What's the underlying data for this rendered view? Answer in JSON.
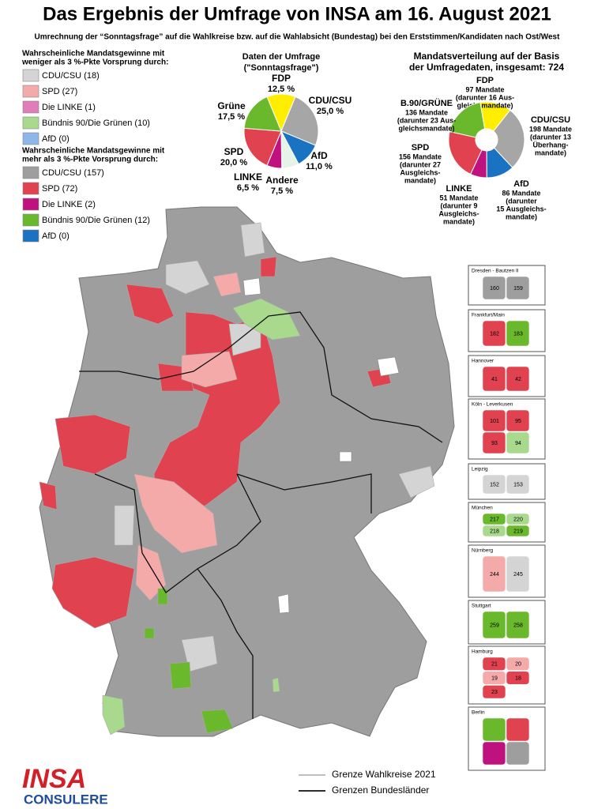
{
  "title": "Das Ergebnis der Umfrage von INSA am 16. August 2021",
  "subtitle": "Umrechnung der “Sonntagsfrage” auf die Wahlkreise bzw. auf die Wahlabsicht (Bundestag) bei den Erststimmen/Kandidaten nach Ost/West",
  "legend_less": {
    "heading": [
      "Wahrscheinliche Mandatsgewinne mit",
      "weniger als 3 %-Pkte Vorsprung durch:"
    ],
    "items": [
      {
        "label": "CDU/CSU (18)",
        "color": "#d4d4d4"
      },
      {
        "label": "SPD (27)",
        "color": "#f3aaa9"
      },
      {
        "label": "Die LINKE (1)",
        "color": "#e07cb8"
      },
      {
        "label": "Bündnis 90/Die Grünen (10)",
        "color": "#a9d98c"
      },
      {
        "label": "AfD (0)",
        "color": "#8db7e8"
      }
    ]
  },
  "legend_more": {
    "heading": [
      "Wahrscheinliche Mandatsgewinne mit",
      "mehr als 3 %-Pkte Vorsprung durch:"
    ],
    "items": [
      {
        "label": "CDU/CSU (157)",
        "color": "#9e9e9e"
      },
      {
        "label": "SPD (72)",
        "color": "#e0434f"
      },
      {
        "label": "Die LINKE (2)",
        "color": "#c0127f"
      },
      {
        "label": "Bündnis 90/Die Grünen (12)",
        "color": "#6ab82c"
      },
      {
        "label": "AfD (0)",
        "color": "#1a73c2"
      }
    ]
  },
  "chart_data": [
    {
      "type": "pie",
      "title": [
        "Daten der Umfrage",
        "(\"Sonntagsfrage\")"
      ],
      "categories": [
        "FDP",
        "CDU/CSU",
        "AfD",
        "Andere",
        "LINKE",
        "SPD",
        "Grüne"
      ],
      "values": [
        12.5,
        25,
        11,
        7.5,
        6.5,
        20,
        17.5
      ],
      "value_labels": [
        "12,5 %",
        "25,0 %",
        "11,0 %",
        "7,5 %",
        "6,5 %",
        "20,0 %",
        "17,5 %"
      ],
      "colors": [
        "#ffee00",
        "#a6a6a6",
        "#1a73c2",
        "#e6f3e8",
        "#c0127f",
        "#e0434f",
        "#6ab82c"
      ]
    },
    {
      "type": "donut",
      "title": [
        "Mandatsverteilung auf der Basis",
        "der Umfragedaten, insgesamt: 724"
      ],
      "categories": [
        "FDP",
        "CDU/CSU",
        "AfD",
        "LINKE",
        "SPD",
        "B.90/GRÜNE"
      ],
      "values": [
        97,
        198,
        86,
        51,
        156,
        136
      ],
      "value_labels": [
        "97 Mandate",
        "198 Mandate",
        "86 Mandate",
        "51 Mandate",
        "156 Mandate",
        "136 Mandate"
      ],
      "notes": [
        [
          "(darunter 16 Aus-",
          "gleichsmandate)"
        ],
        [
          "(darunter 13",
          "Überhang-",
          "mandate)"
        ],
        [
          "(darunter",
          "15 Ausgleichs-",
          "mandate)"
        ],
        [
          "(darunter 9",
          "Ausgleichs-",
          "mandate)"
        ],
        [
          "(darunter 27",
          "Ausgleichs-",
          "mandate)"
        ],
        [
          "(darunter 23 Aus-",
          "gleichsmandate)"
        ]
      ],
      "colors": [
        "#ffee00",
        "#a6a6a6",
        "#1a73c2",
        "#c0127f",
        "#e0434f",
        "#6ab82c"
      ]
    }
  ],
  "insets": [
    {
      "label": "Dresden - Bautzen II",
      "districts": [
        "160",
        "159"
      ]
    },
    {
      "label": "Frankfurt/Main",
      "districts": [
        "182",
        "183"
      ]
    },
    {
      "label": "Hannover",
      "districts": [
        "41",
        "42"
      ]
    },
    {
      "label": "Köln - Leverkusen",
      "districts": [
        "101",
        "95",
        "93",
        "94"
      ]
    },
    {
      "label": "Leipzig",
      "districts": [
        "152",
        "153"
      ]
    },
    {
      "label": "München",
      "districts": [
        "217",
        "220",
        "218",
        "219"
      ]
    },
    {
      "label": "Nürnberg",
      "districts": [
        "244",
        "245"
      ]
    },
    {
      "label": "Stuttgart",
      "districts": [
        "259",
        "258"
      ]
    },
    {
      "label": "Hamburg",
      "districts": [
        "21",
        "20",
        "19",
        "18",
        "23"
      ]
    },
    {
      "label": "Berlin"
    }
  ],
  "footer": {
    "logo_top": "INSA",
    "logo_bottom": "CONSULERE",
    "line_districts": "Grenze Wahlkreise 2021",
    "line_states": "Grenzen Bundesländer"
  }
}
